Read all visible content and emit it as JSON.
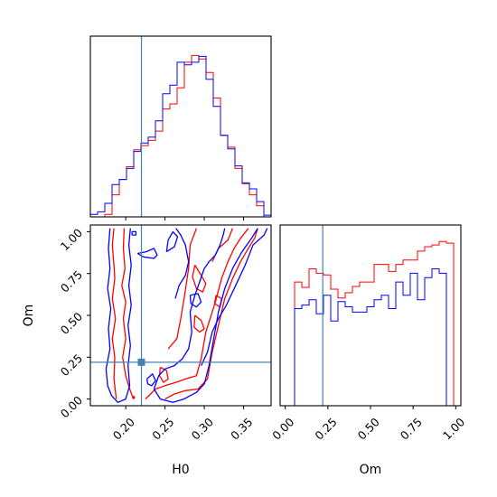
{
  "chart_data": [
    {
      "type": "histogram",
      "panel": "H0 marginal",
      "x_range": [
        0.155,
        0.385
      ],
      "bin_edges": [
        0.155,
        0.1642,
        0.1734,
        0.1826,
        0.1918,
        0.201,
        0.2102,
        0.2194,
        0.2286,
        0.2378,
        0.247,
        0.2562,
        0.2654,
        0.2746,
        0.2838,
        0.293,
        0.3022,
        0.3114,
        0.3206,
        0.3298,
        0.339,
        0.3482,
        0.3574,
        0.3666,
        0.3758,
        0.385
      ],
      "series": [
        {
          "color": "#ff0000",
          "counts": [
            0,
            0,
            3,
            26,
            44,
            59,
            79,
            84,
            90,
            101,
            127,
            133,
            152,
            182,
            190,
            186,
            170,
            140,
            96,
            82,
            57,
            39,
            26,
            13,
            0
          ]
        },
        {
          "color": "#0000ff",
          "counts": [
            3,
            6,
            16,
            38,
            44,
            57,
            77,
            87,
            94,
            113,
            145,
            155,
            182,
            179,
            182,
            189,
            162,
            130,
            96,
            80,
            60,
            40,
            33,
            18,
            2
          ]
        }
      ],
      "vertical_line": {
        "x": 0.22,
        "color": "#4682b4"
      },
      "x_tick_labels_shown": false
    },
    {
      "type": "contour",
      "panel": "H0 vs Om",
      "xlabel": "H0",
      "ylabel": "Om",
      "xlim": [
        0.155,
        0.385
      ],
      "ylim": [
        -0.04,
        1.04
      ],
      "xticks": [
        "0.20",
        "0.25",
        "0.30",
        "0.35"
      ],
      "yticks": [
        "0.00",
        "0.25",
        "0.50",
        "0.75",
        "1.00"
      ],
      "series": [
        {
          "color": "#ff0000",
          "contours": [
            [
              [
                0.185,
                1.02
              ],
              [
                0.183,
                0.92
              ],
              [
                0.185,
                0.8
              ],
              [
                0.186,
                0.72
              ],
              [
                0.183,
                0.6
              ],
              [
                0.187,
                0.48
              ],
              [
                0.183,
                0.36
              ],
              [
                0.186,
                0.25
              ],
              [
                0.185,
                0.12
              ],
              [
                0.188,
                0.0
              ]
            ],
            [
              [
                0.198,
                1.02
              ],
              [
                0.197,
                0.9
              ],
              [
                0.199,
                0.78
              ],
              [
                0.195,
                0.68
              ],
              [
                0.2,
                0.58
              ],
              [
                0.197,
                0.48
              ],
              [
                0.2,
                0.36
              ],
              [
                0.196,
                0.25
              ],
              [
                0.2,
                0.14
              ],
              [
                0.205,
                0.06
              ],
              [
                0.21,
                0.0
              ]
            ],
            [
              [
                0.225,
                0.0
              ],
              [
                0.238,
                0.06
              ],
              [
                0.25,
                0.08
              ],
              [
                0.264,
                0.1
              ],
              [
                0.276,
                0.12
              ],
              [
                0.29,
                0.14
              ],
              [
                0.296,
                0.24
              ],
              [
                0.302,
                0.4
              ],
              [
                0.314,
                0.58
              ],
              [
                0.322,
                0.72
              ],
              [
                0.33,
                0.82
              ],
              [
                0.338,
                0.9
              ],
              [
                0.346,
                0.96
              ],
              [
                0.356,
                1.02
              ]
            ],
            [
              [
                0.25,
                0.0
              ],
              [
                0.262,
                0.03
              ],
              [
                0.276,
                0.05
              ],
              [
                0.292,
                0.06
              ],
              [
                0.304,
                0.12
              ],
              [
                0.31,
                0.28
              ],
              [
                0.318,
                0.44
              ],
              [
                0.326,
                0.6
              ],
              [
                0.336,
                0.72
              ],
              [
                0.346,
                0.82
              ],
              [
                0.356,
                0.9
              ],
              [
                0.364,
                0.96
              ],
              [
                0.368,
                1.02
              ]
            ],
            [
              [
                0.254,
                0.3
              ],
              [
                0.265,
                0.36
              ],
              [
                0.27,
                0.48
              ],
              [
                0.275,
                0.62
              ],
              [
                0.28,
                0.78
              ],
              [
                0.282,
                0.92
              ],
              [
                0.29,
                1.02
              ]
            ],
            [
              [
                0.31,
                0.82
              ],
              [
                0.318,
                0.9
              ],
              [
                0.33,
                0.95
              ],
              [
                0.336,
                1.02
              ]
            ],
            [
              [
                0.288,
                0.8
              ],
              [
                0.296,
                0.74
              ],
              [
                0.302,
                0.69
              ],
              [
                0.298,
                0.64
              ],
              [
                0.29,
                0.66
              ],
              [
                0.285,
                0.73
              ],
              [
                0.288,
                0.8
              ]
            ],
            [
              [
                0.288,
                0.5
              ],
              [
                0.296,
                0.47
              ],
              [
                0.3,
                0.42
              ],
              [
                0.294,
                0.4
              ],
              [
                0.287,
                0.43
              ],
              [
                0.288,
                0.5
              ]
            ],
            [
              [
                0.244,
                0.19
              ],
              [
                0.252,
                0.17
              ],
              [
                0.254,
                0.12
              ],
              [
                0.248,
                0.1
              ],
              [
                0.243,
                0.14
              ],
              [
                0.244,
                0.19
              ]
            ],
            [
              [
                0.315,
                0.62
              ],
              [
                0.322,
                0.6
              ],
              [
                0.32,
                0.55
              ],
              [
                0.313,
                0.57
              ],
              [
                0.315,
                0.62
              ]
            ]
          ],
          "markers": [
            [
              0.21,
              0.01
            ]
          ]
        },
        {
          "color": "#0000ff",
          "contours": [
            [
              [
                0.18,
                1.02
              ],
              [
                0.178,
                0.9
              ],
              [
                0.18,
                0.78
              ],
              [
                0.177,
                0.66
              ],
              [
                0.181,
                0.54
              ],
              [
                0.178,
                0.42
              ],
              [
                0.18,
                0.3
              ],
              [
                0.175,
                0.18
              ],
              [
                0.177,
                0.08
              ],
              [
                0.182,
                0.02
              ],
              [
                0.19,
                -0.02
              ],
              [
                0.2,
                0.0
              ],
              [
                0.205,
                0.08
              ],
              [
                0.203,
                0.2
              ],
              [
                0.206,
                0.32
              ],
              [
                0.203,
                0.44
              ],
              [
                0.207,
                0.56
              ],
              [
                0.204,
                0.68
              ],
              [
                0.207,
                0.8
              ],
              [
                0.204,
                0.92
              ],
              [
                0.206,
                1.02
              ]
            ],
            [
              [
                0.236,
                0.06
              ],
              [
                0.244,
                0.0
              ],
              [
                0.26,
                -0.02
              ],
              [
                0.274,
                0.0
              ],
              [
                0.29,
                0.04
              ],
              [
                0.3,
                0.09
              ],
              [
                0.306,
                0.2
              ],
              [
                0.312,
                0.36
              ],
              [
                0.318,
                0.52
              ],
              [
                0.326,
                0.66
              ],
              [
                0.336,
                0.78
              ],
              [
                0.348,
                0.88
              ],
              [
                0.36,
                0.96
              ],
              [
                0.368,
                1.02
              ]
            ],
            [
              [
                0.236,
                0.06
              ],
              [
                0.242,
                0.14
              ],
              [
                0.25,
                0.18
              ],
              [
                0.262,
                0.2
              ],
              [
                0.272,
                0.24
              ],
              [
                0.28,
                0.3
              ],
              [
                0.284,
                0.4
              ],
              [
                0.282,
                0.52
              ],
              [
                0.288,
                0.62
              ],
              [
                0.294,
                0.7
              ],
              [
                0.3,
                0.78
              ],
              [
                0.306,
                0.82
              ],
              [
                0.314,
                0.86
              ],
              [
                0.32,
                0.92
              ],
              [
                0.324,
                0.98
              ],
              [
                0.326,
                1.02
              ]
            ],
            [
              [
                0.296,
                0.2
              ],
              [
                0.304,
                0.28
              ],
              [
                0.31,
                0.4
              ],
              [
                0.318,
                0.48
              ],
              [
                0.328,
                0.56
              ],
              [
                0.34,
                0.68
              ],
              [
                0.352,
                0.8
              ],
              [
                0.362,
                0.92
              ],
              [
                0.376,
                0.98
              ],
              [
                0.38,
                1.02
              ]
            ],
            [
              [
                0.263,
                0.6
              ],
              [
                0.268,
                0.68
              ],
              [
                0.276,
                0.74
              ],
              [
                0.28,
                0.82
              ],
              [
                0.276,
                0.92
              ],
              [
                0.27,
                0.98
              ],
              [
                0.264,
                1.02
              ]
            ],
            [
              [
                0.215,
                0.87
              ],
              [
                0.226,
                0.88
              ],
              [
                0.236,
                0.9
              ],
              [
                0.24,
                0.86
              ],
              [
                0.236,
                0.84
              ],
              [
                0.222,
                0.85
              ],
              [
                0.215,
                0.87
              ]
            ],
            [
              [
                0.252,
                0.88
              ],
              [
                0.262,
                0.91
              ],
              [
                0.266,
                0.97
              ],
              [
                0.26,
                1.0
              ],
              [
                0.254,
                0.95
              ],
              [
                0.252,
                0.88
              ]
            ],
            [
              [
                0.282,
                0.62
              ],
              [
                0.292,
                0.63
              ],
              [
                0.296,
                0.58
              ],
              [
                0.29,
                0.55
              ],
              [
                0.283,
                0.57
              ],
              [
                0.282,
                0.62
              ]
            ],
            [
              [
                0.227,
                0.12
              ],
              [
                0.234,
                0.15
              ],
              [
                0.238,
                0.11
              ],
              [
                0.233,
                0.08
              ],
              [
                0.228,
                0.09
              ],
              [
                0.227,
                0.12
              ]
            ],
            [
              [
                0.208,
                0.98
              ],
              [
                0.213,
                0.98
              ],
              [
                0.213,
                1.0
              ],
              [
                0.208,
                1.0
              ],
              [
                0.208,
                0.98
              ]
            ]
          ],
          "markers": []
        }
      ],
      "truth_lines": {
        "x": 0.22,
        "y": 0.22,
        "color": "#4682b4"
      },
      "truth_point": {
        "x": 0.22,
        "y": 0.22,
        "color": "#4682b4"
      }
    },
    {
      "type": "histogram",
      "panel": "Om marginal",
      "xlabel": "Om",
      "x_range": [
        -0.03,
        1.03
      ],
      "xticks": [
        "0.00",
        "0.25",
        "0.50",
        "0.75",
        "1.00"
      ],
      "bin_edges": [
        -0.03,
        0.0124,
        0.0548,
        0.0972,
        0.1396,
        0.182,
        0.2244,
        0.2668,
        0.3092,
        0.3516,
        0.394,
        0.4364,
        0.4788,
        0.5212,
        0.5636,
        0.606,
        0.6484,
        0.6908,
        0.7332,
        0.7756,
        0.818,
        0.8604,
        0.9028,
        0.9452,
        0.9876,
        1.03
      ],
      "series": [
        {
          "color": "#ff0000",
          "counts": [
            0,
            0,
            140,
            134,
            155,
            150,
            148,
            132,
            122,
            128,
            135,
            140,
            140,
            160,
            160,
            152,
            160,
            165,
            165,
            175,
            180,
            182,
            186,
            184,
            0
          ]
        },
        {
          "color": "#0000ff",
          "counts": [
            0,
            0,
            110,
            114,
            120,
            104,
            125,
            96,
            118,
            112,
            106,
            106,
            112,
            120,
            125,
            110,
            140,
            125,
            150,
            120,
            145,
            155,
            150,
            0,
            0
          ]
        }
      ],
      "vertical_line": {
        "x": 0.22,
        "color": "#4682b4"
      }
    }
  ]
}
